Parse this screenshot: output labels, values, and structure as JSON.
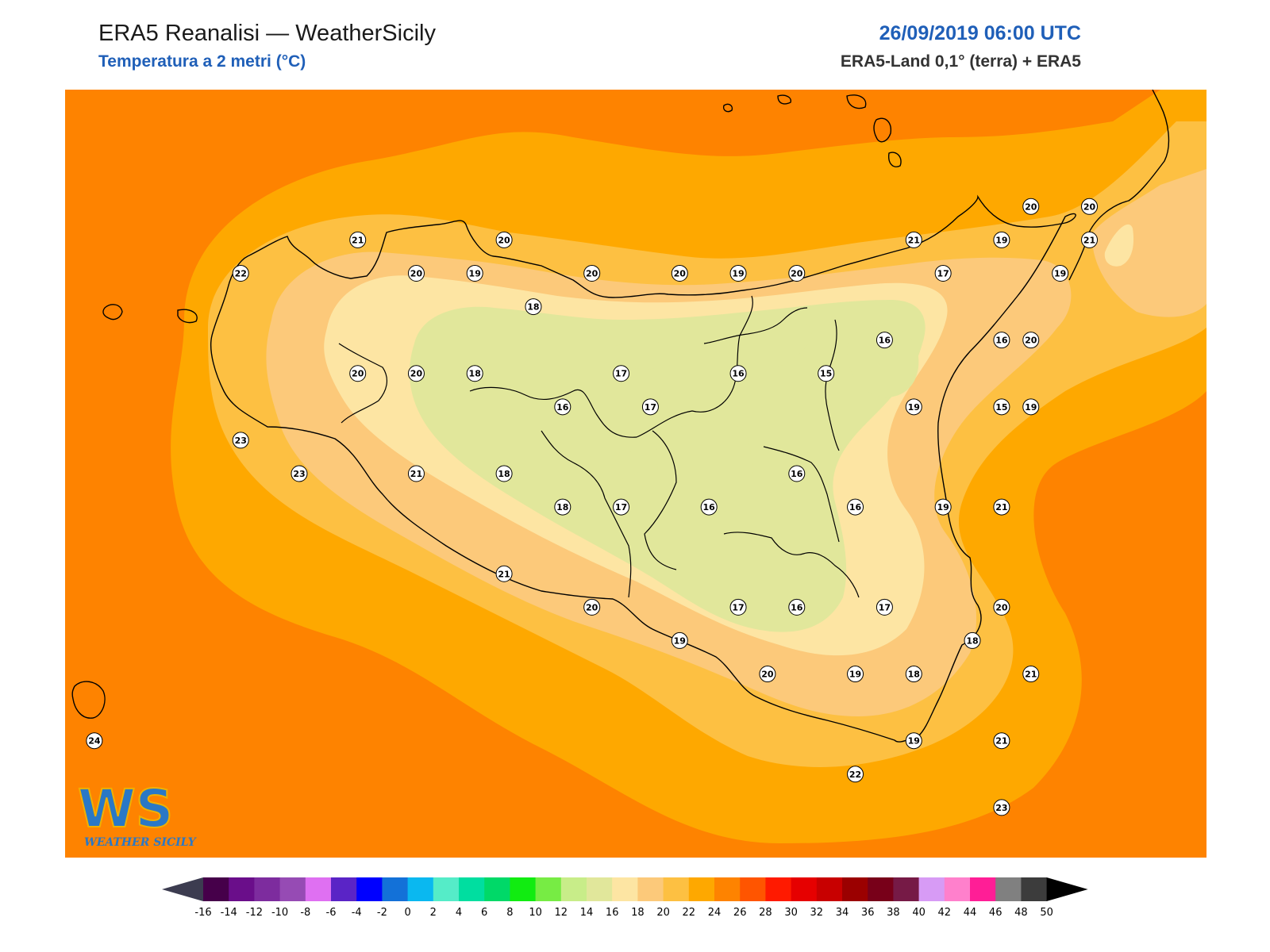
{
  "header": {
    "title": "ERA5 Reanalisi — WeatherSicily",
    "subtitle": "Temperatura a 2 metri (°C)",
    "datetime": "26/09/2019 06:00 UTC",
    "source": "ERA5-Land 0,1° (terra) + ERA5"
  },
  "logo": {
    "text": "WS",
    "caption": "WEATHER SICILY"
  },
  "colors": {
    "t14": "#c8e88a",
    "t16": "#e1e79b",
    "t18": "#fde5a3",
    "t20": "#fcc97a",
    "t22": "#fdc042",
    "t24": "#fea800",
    "t26": "#fe8300",
    "coast": "#000000"
  },
  "colorbar": {
    "ticks": [
      "-16",
      "-14",
      "-12",
      "-10",
      "-8",
      "-6",
      "-4",
      "-2",
      "0",
      "2",
      "4",
      "6",
      "8",
      "10",
      "12",
      "14",
      "16",
      "18",
      "20",
      "22",
      "24",
      "26",
      "28",
      "30",
      "32",
      "34",
      "36",
      "38",
      "40",
      "42",
      "44",
      "46",
      "48",
      "50"
    ],
    "colors": [
      "#46004a",
      "#6a0e8a",
      "#7d2c9e",
      "#964bb4",
      "#df70f2",
      "#5a24c6",
      "#0000ff",
      "#1371d8",
      "#0ab8f0",
      "#55ecc8",
      "#00dea0",
      "#00d968",
      "#11ec11",
      "#77ec44",
      "#c8ed89",
      "#e1e79b",
      "#fde5a3",
      "#fcc97a",
      "#fdc042",
      "#fea800",
      "#fe8300",
      "#ff5500",
      "#ff1a00",
      "#e60000",
      "#c80000",
      "#9b0000",
      "#780019",
      "#761a46",
      "#d79bf5",
      "#ff80cc",
      "#ff1e96",
      "#808080",
      "#3c3c3c"
    ],
    "under_color": "#3c3c50",
    "over_color": "#000000"
  },
  "stations": [
    {
      "lon": 12.4,
      "lat": 38.2,
      "t": "22"
    },
    {
      "lon": 12.8,
      "lat": 38.3,
      "t": "21"
    },
    {
      "lon": 12.4,
      "lat": 37.7,
      "t": "23"
    },
    {
      "lon": 12.6,
      "lat": 37.6,
      "t": "23"
    },
    {
      "lon": 12.8,
      "lat": 37.9,
      "t": "20"
    },
    {
      "lon": 13.0,
      "lat": 37.6,
      "t": "21"
    },
    {
      "lon": 13.0,
      "lat": 38.2,
      "t": "20"
    },
    {
      "lon": 13.0,
      "lat": 37.9,
      "t": "20"
    },
    {
      "lon": 13.2,
      "lat": 38.2,
      "t": "19"
    },
    {
      "lon": 13.2,
      "lat": 37.9,
      "t": "18"
    },
    {
      "lon": 13.3,
      "lat": 38.3,
      "t": "20"
    },
    {
      "lon": 13.3,
      "lat": 37.6,
      "t": "18"
    },
    {
      "lon": 13.3,
      "lat": 37.3,
      "t": "21"
    },
    {
      "lon": 13.4,
      "lat": 38.1,
      "t": "18"
    },
    {
      "lon": 13.5,
      "lat": 37.8,
      "t": "16"
    },
    {
      "lon": 13.5,
      "lat": 37.5,
      "t": "18"
    },
    {
      "lon": 13.6,
      "lat": 38.2,
      "t": "20"
    },
    {
      "lon": 13.6,
      "lat": 37.2,
      "t": "20"
    },
    {
      "lon": 13.7,
      "lat": 37.9,
      "t": "17"
    },
    {
      "lon": 13.7,
      "lat": 37.5,
      "t": "17"
    },
    {
      "lon": 13.8,
      "lat": 37.8,
      "t": "17"
    },
    {
      "lon": 13.9,
      "lat": 38.2,
      "t": "20"
    },
    {
      "lon": 13.9,
      "lat": 37.1,
      "t": "19"
    },
    {
      "lon": 14.0,
      "lat": 37.5,
      "t": "16"
    },
    {
      "lon": 14.1,
      "lat": 38.2,
      "t": "19"
    },
    {
      "lon": 14.1,
      "lat": 37.9,
      "t": "16"
    },
    {
      "lon": 14.1,
      "lat": 37.2,
      "t": "17"
    },
    {
      "lon": 14.2,
      "lat": 37.0,
      "t": "20"
    },
    {
      "lon": 14.3,
      "lat": 38.2,
      "t": "20"
    },
    {
      "lon": 14.3,
      "lat": 37.6,
      "t": "16"
    },
    {
      "lon": 14.3,
      "lat": 37.2,
      "t": "16"
    },
    {
      "lon": 14.4,
      "lat": 37.9,
      "t": "15"
    },
    {
      "lon": 14.5,
      "lat": 37.5,
      "t": "16"
    },
    {
      "lon": 14.5,
      "lat": 37.0,
      "t": "19"
    },
    {
      "lon": 14.6,
      "lat": 38.0,
      "t": "16"
    },
    {
      "lon": 14.6,
      "lat": 37.2,
      "t": "17"
    },
    {
      "lon": 14.5,
      "lat": 36.7,
      "t": "22"
    },
    {
      "lon": 14.7,
      "lat": 38.3,
      "t": "21"
    },
    {
      "lon": 14.7,
      "lat": 37.8,
      "t": "19"
    },
    {
      "lon": 14.7,
      "lat": 37.0,
      "t": "18"
    },
    {
      "lon": 14.7,
      "lat": 36.8,
      "t": "19"
    },
    {
      "lon": 14.8,
      "lat": 38.2,
      "t": "17"
    },
    {
      "lon": 14.8,
      "lat": 37.5,
      "t": "19"
    },
    {
      "lon": 14.9,
      "lat": 37.1,
      "t": "18"
    },
    {
      "lon": 15.0,
      "lat": 38.0,
      "t": "16"
    },
    {
      "lon": 15.0,
      "lat": 37.8,
      "t": "15"
    },
    {
      "lon": 15.0,
      "lat": 36.8,
      "t": "21"
    },
    {
      "lon": 15.0,
      "lat": 38.3,
      "t": "19"
    },
    {
      "lon": 15.0,
      "lat": 37.5,
      "t": "21"
    },
    {
      "lon": 15.0,
      "lat": 37.2,
      "t": "20"
    },
    {
      "lon": 15.1,
      "lat": 38.0,
      "t": "20"
    },
    {
      "lon": 15.1,
      "lat": 37.8,
      "t": "19"
    },
    {
      "lon": 15.1,
      "lat": 37.0,
      "t": "21"
    },
    {
      "lon": 15.1,
      "lat": 38.4,
      "t": "20"
    },
    {
      "lon": 15.2,
      "lat": 38.2,
      "t": "19"
    },
    {
      "lon": 15.0,
      "lat": 36.6,
      "t": "23"
    },
    {
      "lon": 15.3,
      "lat": 38.4,
      "t": "20"
    },
    {
      "lon": 15.3,
      "lat": 38.3,
      "t": "21"
    },
    {
      "lon": 11.9,
      "lat": 36.8,
      "t": "24"
    }
  ]
}
